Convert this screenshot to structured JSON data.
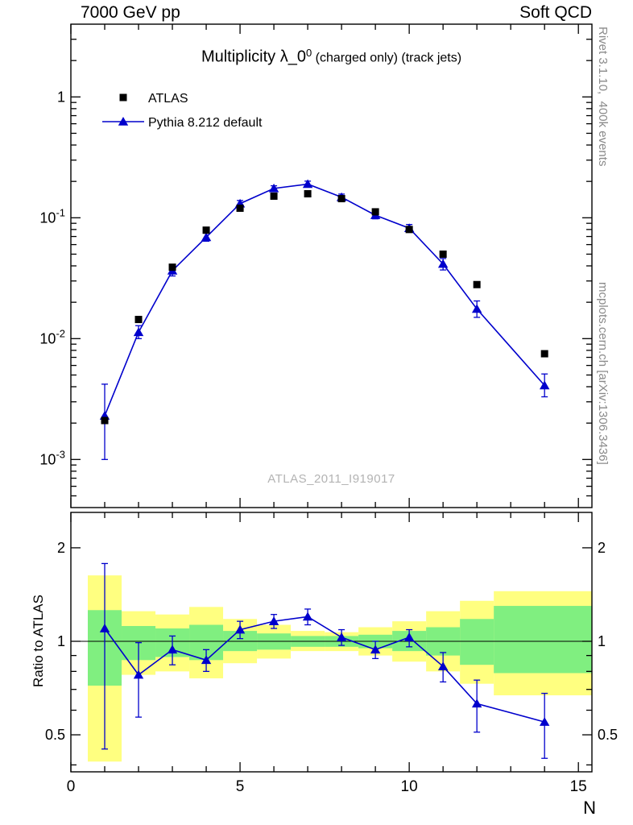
{
  "header": {
    "left": "7000 GeV pp",
    "right": "Soft QCD"
  },
  "side": {
    "top_right": "Rivet 3.1.10,  400k events",
    "bottom_right": "mcplots.cern.ch [arXiv:1306.3436]"
  },
  "title": {
    "main": "Multiplicity λ_0",
    "sup": "0",
    "suffix": " (charged only) (track jets)"
  },
  "watermark": "ATLAS_2011_I919017",
  "axes": {
    "xlabel": "N",
    "ratio_ylabel": "Ratio to ATLAS"
  },
  "colors": {
    "pythia_blue": "#0000cc",
    "band_yellow": "#ffff80",
    "band_green": "#80ef80",
    "atlas_black": "#000000"
  },
  "chart_data": [
    {
      "type": "line",
      "panel": "main",
      "yscale": "log",
      "xlim": [
        0,
        15.4
      ],
      "ylim": [
        0.0004,
        4.0
      ],
      "grid": false,
      "legend_position": "top-left",
      "x_ticks": [
        {
          "v": 0,
          "label": "0"
        },
        {
          "v": 5,
          "label": "5"
        },
        {
          "v": 10,
          "label": "10"
        },
        {
          "v": 15,
          "label": "15"
        }
      ],
      "y_ticks": [
        {
          "v": 1,
          "label": "1"
        },
        {
          "v": 0.1,
          "label": "10^-1"
        },
        {
          "v": 0.01,
          "label": "10^-2"
        },
        {
          "v": 0.001,
          "label": "10^-3"
        }
      ],
      "y_majors": [
        0.001,
        0.01,
        0.1,
        1
      ],
      "series": [
        {
          "name": "ATLAS",
          "marker": "square",
          "color": "#000000",
          "line": false,
          "x": [
            1,
            2,
            3,
            4,
            5,
            6,
            7,
            8,
            9,
            10,
            11,
            12,
            14
          ],
          "y": [
            0.0021,
            0.0144,
            0.039,
            0.079,
            0.12,
            0.151,
            0.158,
            0.144,
            0.112,
            0.08,
            0.05,
            0.028,
            0.0075
          ]
        },
        {
          "name": "Pythia 8.212 default",
          "marker": "triangle",
          "color": "#0000cc",
          "line": true,
          "x": [
            1,
            2,
            3,
            4,
            5,
            6,
            7,
            8,
            9,
            10,
            11,
            12,
            14
          ],
          "y": [
            0.0023,
            0.0113,
            0.0365,
            0.069,
            0.131,
            0.175,
            0.19,
            0.148,
            0.105,
            0.082,
            0.0415,
            0.0176,
            0.0041
          ],
          "yerr_lo": [
            0.001,
            0.01,
            0.033,
            0.064,
            0.123,
            0.166,
            0.18,
            0.139,
            0.098,
            0.076,
            0.037,
            0.015,
            0.0033
          ],
          "yerr_hi": [
            0.0042,
            0.0128,
            0.04,
            0.0745,
            0.139,
            0.184,
            0.201,
            0.157,
            0.112,
            0.088,
            0.046,
            0.0205,
            0.0051
          ]
        }
      ]
    },
    {
      "type": "ratio",
      "panel": "ratio",
      "yscale": "log",
      "xlim": [
        0,
        15.4
      ],
      "ylim": [
        0.38,
        2.6
      ],
      "ylabel": "Ratio to ATLAS",
      "reference_y": 1,
      "y_ticks": [
        {
          "v": 2,
          "label": "2"
        },
        {
          "v": 1,
          "label": "1"
        },
        {
          "v": 0.5,
          "label": "0.5"
        }
      ],
      "y_majors": [
        0.5,
        1,
        2
      ],
      "band_colors": {
        "yellow": "#ffff80",
        "green": "#80ef80"
      },
      "bands": [
        {
          "x0": 0.5,
          "x1": 1.5,
          "yellow": [
            0.41,
            1.63
          ],
          "green": [
            0.72,
            1.26
          ]
        },
        {
          "x0": 1.5,
          "x1": 2.5,
          "yellow": [
            0.78,
            1.25
          ],
          "green": [
            0.87,
            1.12
          ]
        },
        {
          "x0": 2.5,
          "x1": 3.5,
          "yellow": [
            0.8,
            1.22
          ],
          "green": [
            0.89,
            1.1
          ]
        },
        {
          "x0": 3.5,
          "x1": 4.5,
          "yellow": [
            0.76,
            1.29
          ],
          "green": [
            0.87,
            1.13
          ]
        },
        {
          "x0": 4.5,
          "x1": 5.5,
          "yellow": [
            0.85,
            1.18
          ],
          "green": [
            0.93,
            1.08
          ]
        },
        {
          "x0": 5.5,
          "x1": 6.5,
          "yellow": [
            0.88,
            1.13
          ],
          "green": [
            0.94,
            1.06
          ]
        },
        {
          "x0": 6.5,
          "x1": 7.5,
          "yellow": [
            0.93,
            1.08
          ],
          "green": [
            0.96,
            1.04
          ]
        },
        {
          "x0": 7.5,
          "x1": 8.5,
          "yellow": [
            0.93,
            1.07
          ],
          "green": [
            0.96,
            1.04
          ]
        },
        {
          "x0": 8.5,
          "x1": 9.5,
          "yellow": [
            0.9,
            1.11
          ],
          "green": [
            0.95,
            1.05
          ]
        },
        {
          "x0": 9.5,
          "x1": 10.5,
          "yellow": [
            0.86,
            1.16
          ],
          "green": [
            0.93,
            1.08
          ]
        },
        {
          "x0": 10.5,
          "x1": 11.5,
          "yellow": [
            0.8,
            1.25
          ],
          "green": [
            0.9,
            1.11
          ]
        },
        {
          "x0": 11.5,
          "x1": 12.5,
          "yellow": [
            0.73,
            1.35
          ],
          "green": [
            0.84,
            1.18
          ]
        },
        {
          "x0": 12.5,
          "x1": 15.4,
          "yellow": [
            0.67,
            1.45
          ],
          "green": [
            0.79,
            1.3
          ]
        }
      ],
      "series": [
        {
          "name": "Pythia 8.212 default / ATLAS",
          "marker": "triangle",
          "color": "#0000cc",
          "line": true,
          "x": [
            1,
            2,
            3,
            4,
            5,
            6,
            7,
            8,
            9,
            10,
            11,
            12,
            14
          ],
          "y": [
            1.1,
            0.78,
            0.94,
            0.87,
            1.09,
            1.16,
            1.2,
            1.03,
            0.94,
            1.03,
            0.83,
            0.63,
            0.55
          ],
          "yerr_lo": [
            0.45,
            0.57,
            0.84,
            0.8,
            1.02,
            1.1,
            1.13,
            0.97,
            0.88,
            0.96,
            0.74,
            0.51,
            0.42
          ],
          "yerr_hi": [
            1.78,
            0.99,
            1.04,
            0.94,
            1.16,
            1.22,
            1.27,
            1.09,
            1.0,
            1.09,
            0.92,
            0.75,
            0.68
          ]
        }
      ]
    }
  ]
}
